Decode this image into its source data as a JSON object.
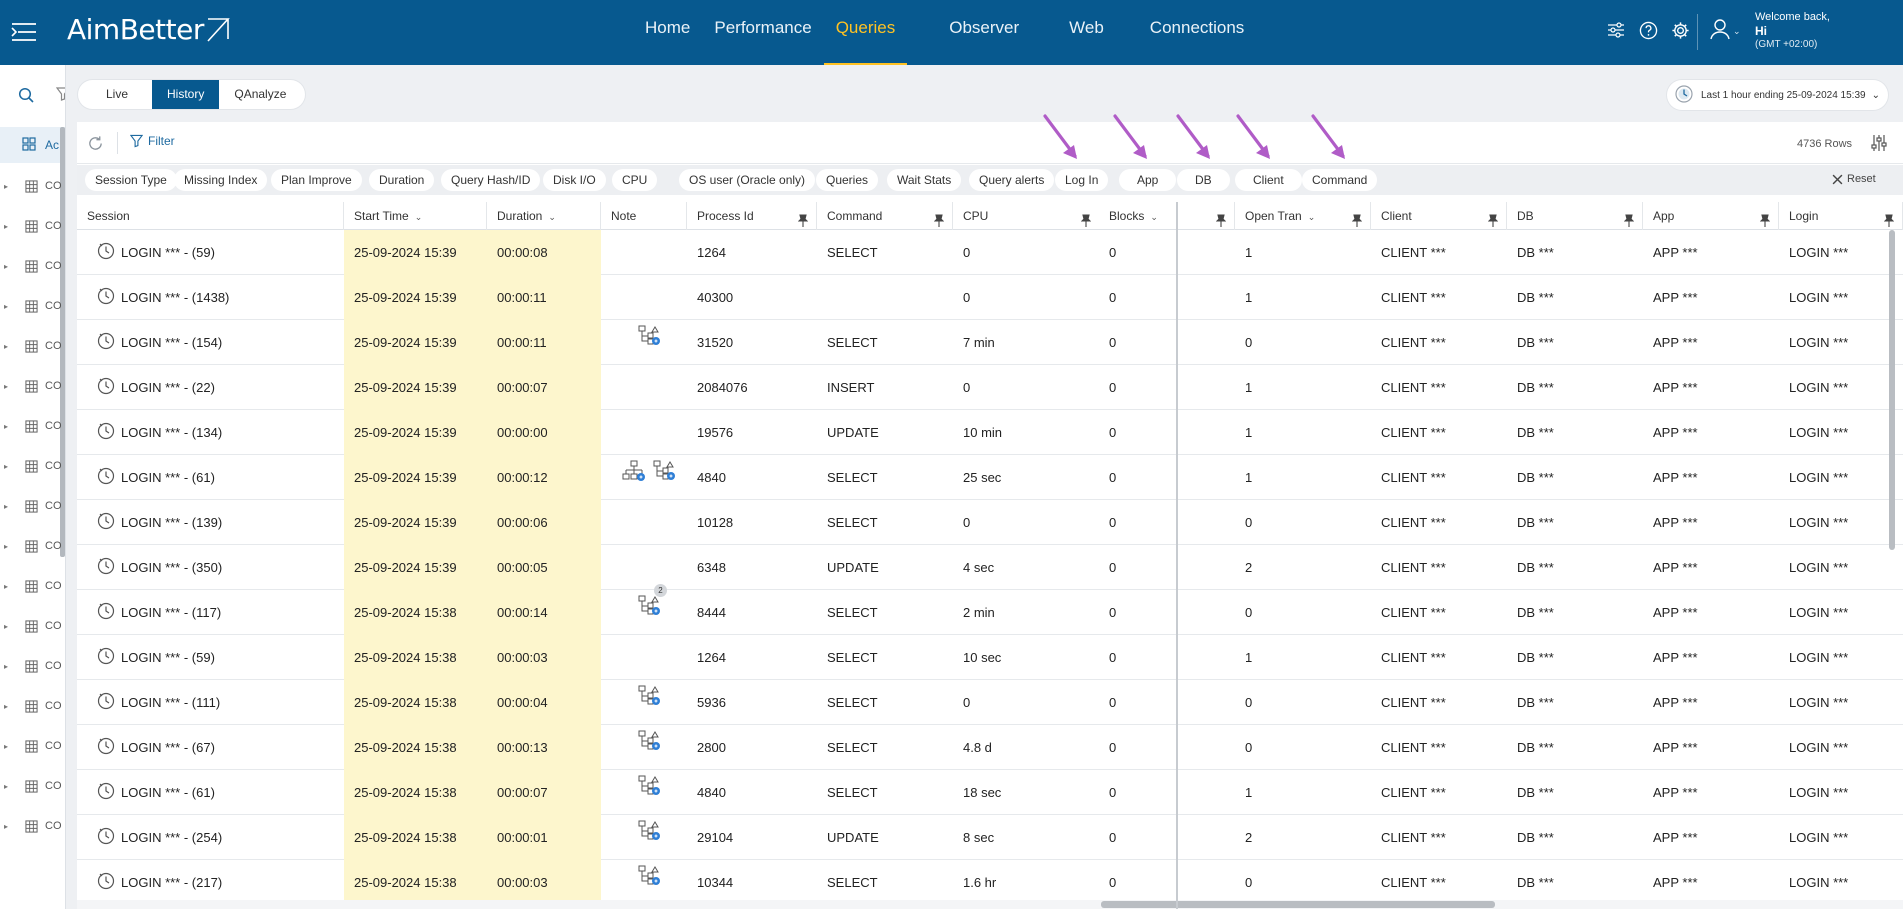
{
  "app": {
    "logo_text": "AimBetter",
    "nav": [
      {
        "label": "Home"
      },
      {
        "label": "Performance"
      },
      {
        "label": "Queries"
      },
      {
        "label": "Observer"
      },
      {
        "label": "Web"
      },
      {
        "label": "Connections"
      }
    ],
    "active_nav": "Queries",
    "user": {
      "welcome": "Welcome back,",
      "name": "Hi",
      "timezone": "(GMT +02:00)"
    }
  },
  "sidebar": {
    "active_label": "Ac",
    "item_label": "CO",
    "row_count": 17
  },
  "modes": [
    {
      "label": "Live"
    },
    {
      "label": "History"
    },
    {
      "label": "QAnalyze"
    }
  ],
  "active_mode": "History",
  "time_range": {
    "label": "Last 1 hour ending",
    "value": "25-09-2024 15:39"
  },
  "toolbar": {
    "filter_label": "Filter",
    "rows_count": "4736 Rows"
  },
  "filter_chips": [
    "Session Type",
    "Missing Index",
    "Plan Improve",
    "Duration",
    "Query Hash/ID",
    "Disk I/O",
    "CPU",
    "OS user (Oracle only)",
    "Queries",
    "Wait Stats",
    "Query alerts",
    "Log In",
    "App",
    "DB",
    "Client",
    "Command"
  ],
  "reset_label": "Reset",
  "columns": [
    {
      "label": "Session",
      "sort": false,
      "pin": false
    },
    {
      "label": "Start Time",
      "sort": true,
      "pin": false
    },
    {
      "label": "Duration",
      "sort": true,
      "pin": false
    },
    {
      "label": "Note",
      "sort": false,
      "pin": false
    },
    {
      "label": "Process Id",
      "sort": false,
      "pin": true
    },
    {
      "label": "Command",
      "sort": false,
      "pin": true
    },
    {
      "label": "CPU",
      "sort": false,
      "pin": true
    },
    {
      "label": "Blocks",
      "sort": true,
      "pin": true
    },
    {
      "label": "Open Tran",
      "sort": true,
      "pin": true
    },
    {
      "label": "Client",
      "sort": false,
      "pin": true
    },
    {
      "label": "DB",
      "sort": false,
      "pin": true
    },
    {
      "label": "App",
      "sort": false,
      "pin": true
    },
    {
      "label": "Login",
      "sort": false,
      "pin": true
    }
  ],
  "rows": [
    {
      "session": "LOGIN *** - (59)",
      "start": "25-09-2024 15:39",
      "duration": "00:00:08",
      "note": "",
      "note_badge": "",
      "pid": "1264",
      "command": "SELECT",
      "cpu": "0",
      "blocks": "0",
      "open_tran": "1",
      "client": "CLIENT ***",
      "db": "DB ***",
      "app": "APP ***",
      "login": "LOGIN ***"
    },
    {
      "session": "LOGIN *** - (1438)",
      "start": "25-09-2024 15:39",
      "duration": "00:00:11",
      "note": "",
      "note_badge": "",
      "pid": "40300",
      "command": "",
      "cpu": "0",
      "blocks": "0",
      "open_tran": "1",
      "client": "CLIENT ***",
      "db": "DB ***",
      "app": "APP ***",
      "login": "LOGIN ***"
    },
    {
      "session": "LOGIN *** - (154)",
      "start": "25-09-2024 15:39",
      "duration": "00:00:11",
      "note": "plan",
      "note_badge": "",
      "pid": "31520",
      "command": "SELECT",
      "cpu": "7 min",
      "blocks": "0",
      "open_tran": "0",
      "client": "CLIENT ***",
      "db": "DB ***",
      "app": "APP ***",
      "login": "LOGIN ***"
    },
    {
      "session": "LOGIN *** - (22)",
      "start": "25-09-2024 15:39",
      "duration": "00:00:07",
      "note": "",
      "note_badge": "",
      "pid": "2084076",
      "command": "INSERT",
      "cpu": "0",
      "blocks": "0",
      "open_tran": "1",
      "client": "CLIENT ***",
      "db": "DB ***",
      "app": "APP ***",
      "login": "LOGIN ***"
    },
    {
      "session": "LOGIN *** - (134)",
      "start": "25-09-2024 15:39",
      "duration": "00:00:00",
      "note": "",
      "note_badge": "",
      "pid": "19576",
      "command": "UPDATE",
      "cpu": "10 min",
      "blocks": "0",
      "open_tran": "1",
      "client": "CLIENT ***",
      "db": "DB ***",
      "app": "APP ***",
      "login": "LOGIN ***"
    },
    {
      "session": "LOGIN *** - (61)",
      "start": "25-09-2024 15:39",
      "duration": "00:00:12",
      "note": "index+plan",
      "note_badge": "",
      "pid": "4840",
      "command": "SELECT",
      "cpu": "25 sec",
      "blocks": "0",
      "open_tran": "1",
      "client": "CLIENT ***",
      "db": "DB ***",
      "app": "APP ***",
      "login": "LOGIN ***"
    },
    {
      "session": "LOGIN *** - (139)",
      "start": "25-09-2024 15:39",
      "duration": "00:00:06",
      "note": "",
      "note_badge": "",
      "pid": "10128",
      "command": "SELECT",
      "cpu": "0",
      "blocks": "0",
      "open_tran": "0",
      "client": "CLIENT ***",
      "db": "DB ***",
      "app": "APP ***",
      "login": "LOGIN ***"
    },
    {
      "session": "LOGIN *** - (350)",
      "start": "25-09-2024 15:39",
      "duration": "00:00:05",
      "note": "",
      "note_badge": "",
      "pid": "6348",
      "command": "UPDATE",
      "cpu": "4 sec",
      "blocks": "0",
      "open_tran": "2",
      "client": "CLIENT ***",
      "db": "DB ***",
      "app": "APP ***",
      "login": "LOGIN ***"
    },
    {
      "session": "LOGIN *** - (117)",
      "start": "25-09-2024 15:38",
      "duration": "00:00:14",
      "note": "plan",
      "note_badge": "2",
      "pid": "8444",
      "command": "SELECT",
      "cpu": "2 min",
      "blocks": "0",
      "open_tran": "0",
      "client": "CLIENT ***",
      "db": "DB ***",
      "app": "APP ***",
      "login": "LOGIN ***"
    },
    {
      "session": "LOGIN *** - (59)",
      "start": "25-09-2024 15:38",
      "duration": "00:00:03",
      "note": "",
      "note_badge": "",
      "pid": "1264",
      "command": "SELECT",
      "cpu": "10 sec",
      "blocks": "0",
      "open_tran": "1",
      "client": "CLIENT ***",
      "db": "DB ***",
      "app": "APP ***",
      "login": "LOGIN ***"
    },
    {
      "session": "LOGIN *** - (111)",
      "start": "25-09-2024 15:38",
      "duration": "00:00:04",
      "note": "plan",
      "note_badge": "",
      "pid": "5936",
      "command": "SELECT",
      "cpu": "0",
      "blocks": "0",
      "open_tran": "0",
      "client": "CLIENT ***",
      "db": "DB ***",
      "app": "APP ***",
      "login": "LOGIN ***"
    },
    {
      "session": "LOGIN *** - (67)",
      "start": "25-09-2024 15:38",
      "duration": "00:00:13",
      "note": "plan",
      "note_badge": "",
      "pid": "2800",
      "command": "SELECT",
      "cpu": "4.8 d",
      "blocks": "0",
      "open_tran": "0",
      "client": "CLIENT ***",
      "db": "DB ***",
      "app": "APP ***",
      "login": "LOGIN ***"
    },
    {
      "session": "LOGIN *** - (61)",
      "start": "25-09-2024 15:38",
      "duration": "00:00:07",
      "note": "plan",
      "note_badge": "",
      "pid": "4840",
      "command": "SELECT",
      "cpu": "18 sec",
      "blocks": "0",
      "open_tran": "1",
      "client": "CLIENT ***",
      "db": "DB ***",
      "app": "APP ***",
      "login": "LOGIN ***"
    },
    {
      "session": "LOGIN *** - (254)",
      "start": "25-09-2024 15:38",
      "duration": "00:00:01",
      "note": "plan",
      "note_badge": "",
      "pid": "29104",
      "command": "UPDATE",
      "cpu": "8 sec",
      "blocks": "0",
      "open_tran": "2",
      "client": "CLIENT ***",
      "db": "DB ***",
      "app": "APP ***",
      "login": "LOGIN ***"
    },
    {
      "session": "LOGIN *** - (217)",
      "start": "25-09-2024 15:38",
      "duration": "00:00:03",
      "note": "plan",
      "note_badge": "",
      "pid": "10344",
      "command": "SELECT",
      "cpu": "1.6 hr",
      "blocks": "0",
      "open_tran": "0",
      "client": "CLIENT ***",
      "db": "DB ***",
      "app": "APP ***",
      "login": "LOGIN ***"
    }
  ],
  "colors": {
    "header_bg": "#07598f",
    "active_nav": "#ffc223",
    "highlight_cell": "#fdf6cd",
    "annotation_arrow": "#b05cc7",
    "accent_blue": "#1e6aa0"
  },
  "annotation_arrows_point_to": [
    "Log In",
    "App",
    "DB",
    "Client",
    "Command"
  ]
}
